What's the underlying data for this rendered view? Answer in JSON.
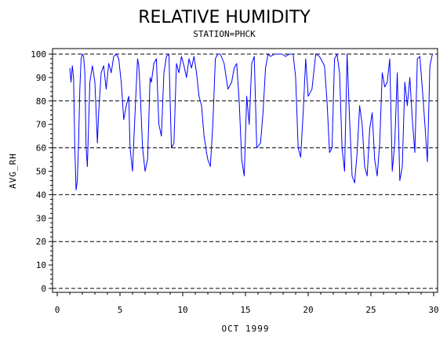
{
  "chart_data": {
    "type": "line",
    "title": "RELATIVE HUMIDITY",
    "subtitle": "STATION=PHCK",
    "xlabel": "OCT 1999",
    "ylabel": "AVG_RH",
    "xlim": [
      0,
      30
    ],
    "ylim": [
      0,
      100
    ],
    "x_ticks": [
      0,
      5,
      10,
      15,
      20,
      25,
      30
    ],
    "y_ticks": [
      0,
      10,
      20,
      30,
      40,
      50,
      60,
      70,
      80,
      90,
      100
    ],
    "y_gridlines": [
      0,
      20,
      40,
      60,
      80,
      100
    ],
    "grid_style": "dashed",
    "series": [
      {
        "color": "#0000ff",
        "x": [
          1.0,
          1.1,
          1.2,
          1.3,
          1.4,
          1.5,
          1.6,
          1.7,
          1.8,
          1.9,
          2.0,
          2.1,
          2.2,
          2.3,
          2.4,
          2.5,
          2.6,
          2.8,
          3.0,
          3.2,
          3.3,
          3.5,
          3.7,
          3.9,
          4.1,
          4.3,
          4.5,
          4.7,
          4.9,
          5.1,
          5.3,
          5.5,
          5.7,
          5.8,
          6.0,
          6.2,
          6.4,
          6.5,
          6.6,
          6.8,
          7.0,
          7.2,
          7.4,
          7.5,
          7.7,
          7.9,
          8.1,
          8.3,
          8.5,
          8.7,
          8.9,
          9.1,
          9.3,
          9.5,
          9.7,
          9.9,
          10.1,
          10.3,
          10.5,
          10.7,
          10.9,
          11.1,
          11.3,
          11.5,
          11.7,
          11.9,
          12.0,
          12.2,
          12.4,
          12.6,
          12.8,
          13.0,
          13.3,
          13.6,
          13.9,
          14.1,
          14.3,
          14.5,
          14.7,
          14.9,
          15.1,
          15.3,
          15.5,
          15.7,
          15.9,
          16.2,
          16.4,
          16.6,
          16.8,
          17.0,
          17.3,
          17.6,
          17.9,
          18.2,
          18.5,
          18.8,
          19.0,
          19.2,
          19.4,
          19.6,
          19.8,
          20.0,
          20.3,
          20.6,
          20.9,
          21.1,
          21.3,
          21.5,
          21.7,
          21.9,
          22.1,
          22.3,
          22.5,
          22.7,
          22.9,
          23.1,
          23.3,
          23.5,
          23.7,
          23.9,
          24.1,
          24.3,
          24.5,
          24.7,
          24.9,
          25.1,
          25.3,
          25.5,
          25.7,
          25.9,
          26.1,
          26.3,
          26.5,
          26.7,
          26.9,
          27.1,
          27.3,
          27.5,
          27.7,
          27.9,
          28.1,
          28.3,
          28.5,
          28.7,
          28.9,
          29.1,
          29.3,
          29.5,
          29.7,
          29.9
        ],
        "y": [
          94,
          88,
          95,
          90,
          60,
          42,
          46,
          62,
          85,
          98,
          100,
          99,
          92,
          60,
          52,
          70,
          88,
          95,
          88,
          62,
          75,
          92,
          95,
          85,
          96,
          92,
          99,
          100,
          98,
          88,
          72,
          78,
          82,
          60,
          50,
          75,
          98,
          95,
          85,
          60,
          50,
          55,
          90,
          88,
          96,
          98,
          70,
          65,
          92,
          99,
          100,
          60,
          62,
          96,
          92,
          99,
          95,
          90,
          98,
          94,
          99,
          92,
          82,
          78,
          65,
          58,
          55,
          52,
          70,
          98,
          100,
          100,
          96,
          85,
          88,
          94,
          96,
          80,
          55,
          48,
          82,
          70,
          96,
          99,
          60,
          62,
          75,
          94,
          100,
          99,
          100,
          100,
          100,
          99,
          100,
          100,
          90,
          60,
          56,
          75,
          98,
          82,
          85,
          100,
          99,
          97,
          95,
          80,
          58,
          60,
          98,
          100,
          92,
          60,
          50,
          100,
          72,
          48,
          45,
          58,
          78,
          70,
          52,
          48,
          68,
          75,
          55,
          48,
          62,
          92,
          86,
          88,
          98,
          50,
          62,
          92,
          46,
          52,
          88,
          78,
          90,
          72,
          58,
          98,
          99,
          85,
          70,
          54,
          95,
          100
        ]
      }
    ]
  }
}
